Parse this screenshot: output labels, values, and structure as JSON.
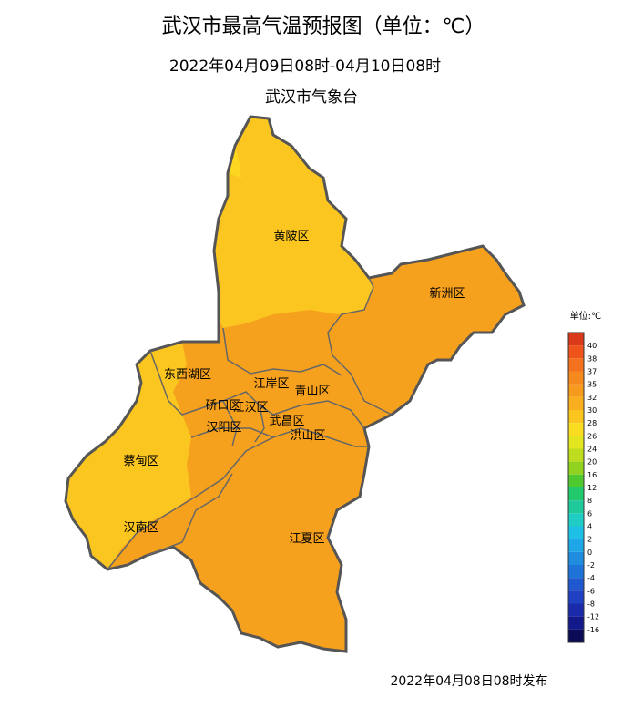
{
  "header": {
    "title": "武汉市最高气温预报图（单位：℃）",
    "subtitle": "2022年04月09日08时-04月10日08时",
    "issuer": "武汉市气象台"
  },
  "districts": [
    {
      "label": "黄陂区"
    },
    {
      "label": "新洲区"
    },
    {
      "label": "东西湖区"
    },
    {
      "label": "江岸区"
    },
    {
      "label": "青山区"
    },
    {
      "label": "硚口区"
    },
    {
      "label": "江汉区"
    },
    {
      "label": "武昌区"
    },
    {
      "label": "汉阳区"
    },
    {
      "label": "洪山区"
    },
    {
      "label": "蔡甸区"
    },
    {
      "label": "汉南区"
    },
    {
      "label": "江夏区"
    }
  ],
  "legend": {
    "title": "单位:℃",
    "labels": [
      "40",
      "38",
      "37",
      "35",
      "32",
      "30",
      "28",
      "26",
      "24",
      "20",
      "16",
      "12",
      "8",
      "6",
      "4",
      "2",
      "0",
      "-2",
      "-4",
      "-6",
      "-8",
      "-12",
      "-16"
    ],
    "colors": [
      "#d93a1a",
      "#ee541b",
      "#f4711d",
      "#f5891e",
      "#f69b1e",
      "#f8ae1f",
      "#fbc41f",
      "#f7dc1f",
      "#e3e61f",
      "#bedd1f",
      "#8fd21f",
      "#4fc92f",
      "#22c96a",
      "#1fc99a",
      "#1fcdc4",
      "#1fc0e6",
      "#1fa6e6",
      "#1f8ce0",
      "#1f72d8",
      "#1f58cf",
      "#1f40c0",
      "#1a2aa8",
      "#13188a",
      "#0b0b55"
    ]
  },
  "footer": "2022年04月08日08时发布"
}
